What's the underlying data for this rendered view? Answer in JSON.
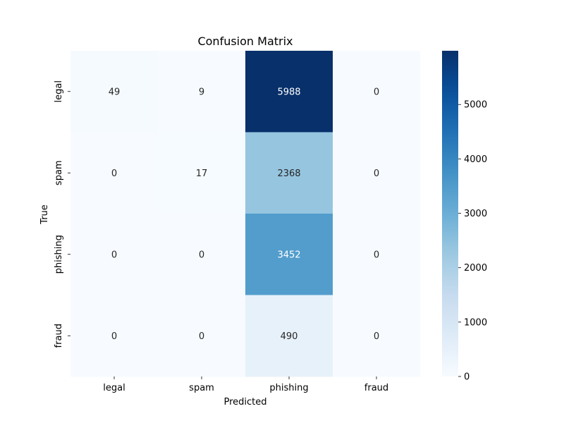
{
  "chart_data": {
    "type": "heatmap",
    "title": "Confusion Matrix",
    "xlabel": "Predicted",
    "ylabel": "True",
    "x_categories": [
      "legal",
      "spam",
      "phishing",
      "fraud"
    ],
    "y_categories": [
      "legal",
      "spam",
      "phishing",
      "fraud"
    ],
    "values": [
      [
        49,
        9,
        5988,
        0
      ],
      [
        0,
        17,
        2368,
        0
      ],
      [
        0,
        0,
        3452,
        0
      ],
      [
        0,
        0,
        490,
        0
      ]
    ],
    "value_range": [
      0,
      5988
    ],
    "colormap": "Blues",
    "colorbar": {
      "ticks": [
        0,
        1000,
        2000,
        3000,
        4000,
        5000
      ],
      "tick_labels": [
        "0",
        "1000",
        "2000",
        "3000",
        "4000",
        "5000"
      ]
    },
    "annotations": true,
    "grid": false
  },
  "colors": {
    "blues_low": "#f7fbff",
    "blues_high": "#08306b",
    "text_dark": "#262626",
    "text_light": "#ffffff"
  }
}
